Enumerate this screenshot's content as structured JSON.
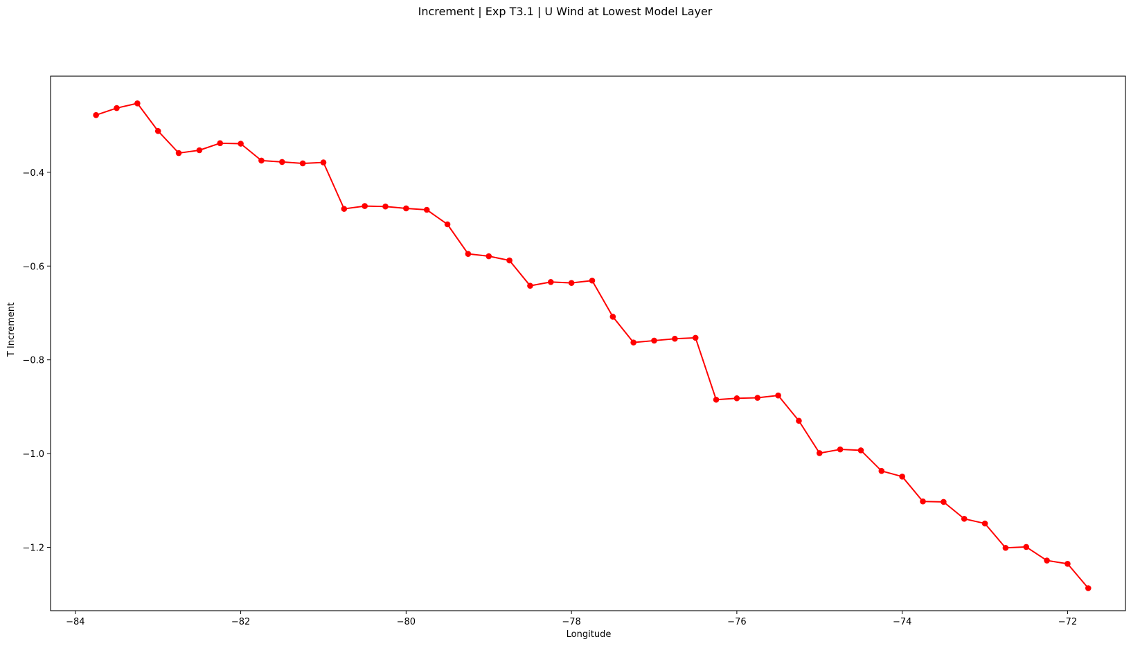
{
  "chart_data": {
    "type": "line",
    "title": "Increment | Exp T3.1 | U Wind at Lowest Model Layer",
    "xlabel": "Longitude",
    "ylabel": "T Increment",
    "xlim": [
      -84.3,
      -71.3
    ],
    "ylim": [
      -1.335,
      -0.195
    ],
    "xticks": [
      -84,
      -82,
      -80,
      -78,
      -76,
      -74,
      -72
    ],
    "xtick_labels": [
      "−84",
      "−82",
      "−80",
      "−78",
      "−76",
      "−74",
      "−72"
    ],
    "yticks": [
      -0.4,
      -0.6,
      -0.8,
      -1.0,
      -1.2
    ],
    "ytick_labels": [
      "−0.4",
      "−0.6",
      "−0.8",
      "−1.0",
      "−1.2"
    ],
    "grid": false,
    "series": [
      {
        "color": "#ff0000",
        "marker": "circle",
        "x": [
          -83.75,
          -83.5,
          -83.25,
          -83.0,
          -82.75,
          -82.5,
          -82.25,
          -82.0,
          -81.75,
          -81.5,
          -81.25,
          -81.0,
          -80.75,
          -80.5,
          -80.25,
          -80.0,
          -79.75,
          -79.5,
          -79.25,
          -79.0,
          -78.75,
          -78.5,
          -78.25,
          -78.0,
          -77.75,
          -77.5,
          -77.25,
          -77.0,
          -76.75,
          -76.5,
          -76.25,
          -76.0,
          -75.75,
          -75.5,
          -75.25,
          -75.0,
          -74.75,
          -74.5,
          -74.25,
          -74.0,
          -73.75,
          -73.5,
          -73.25,
          -73.0,
          -72.75,
          -72.5,
          -72.25,
          -72.0,
          -71.75
        ],
        "y": [
          -0.278,
          -0.263,
          -0.253,
          -0.312,
          -0.359,
          -0.353,
          -0.338,
          -0.339,
          -0.375,
          -0.378,
          -0.381,
          -0.379,
          -0.478,
          -0.472,
          -0.473,
          -0.477,
          -0.48,
          -0.511,
          -0.574,
          -0.579,
          -0.588,
          -0.642,
          -0.634,
          -0.636,
          -0.631,
          -0.708,
          -0.763,
          -0.759,
          -0.755,
          -0.753,
          -0.885,
          -0.882,
          -0.881,
          -0.876,
          -0.93,
          -0.999,
          -0.991,
          -0.993,
          -1.037,
          -1.049,
          -1.102,
          -1.103,
          -1.139,
          -1.149,
          -1.201,
          -1.199,
          -1.228,
          -1.235,
          -1.287
        ]
      }
    ]
  }
}
